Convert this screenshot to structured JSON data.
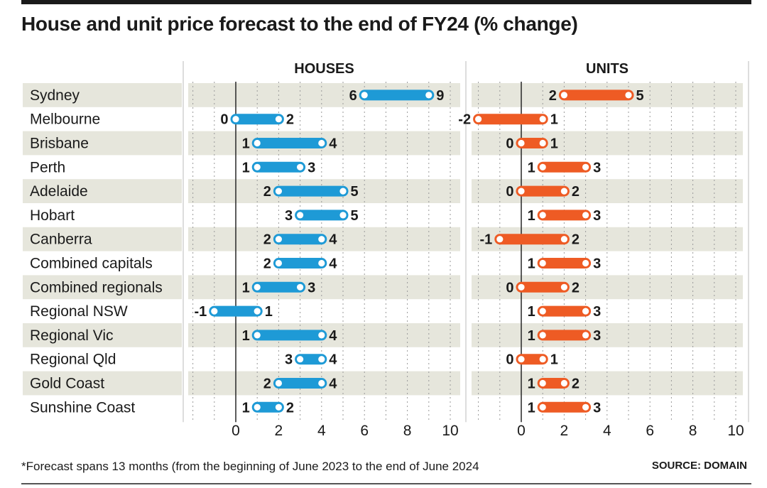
{
  "title": "House and unit price forecast to the end of FY24 (% change)",
  "footnote": "*Forecast spans 13 months (from the beginning of June 2023 to the end of June 2024",
  "source": "SOURCE: DOMAIN",
  "colors": {
    "houses": "#1e9ad6",
    "units": "#ee5b24",
    "band": "#e6e6dc",
    "axis": "#333333",
    "text": "#1a1a1a"
  },
  "chart_data": {
    "type": "range-bar",
    "title": "House and unit price forecast to the end of FY24 (% change)",
    "categories": [
      "Sydney",
      "Melbourne",
      "Brisbane",
      "Perth",
      "Adelaide",
      "Hobart",
      "Canberra",
      "Combined capitals",
      "Combined regionals",
      "Regional NSW",
      "Regional Vic",
      "Regional Qld",
      "Gold Coast",
      "Sunshine Coast"
    ],
    "panels": [
      {
        "name": "HOUSES",
        "xlim": [
          -2,
          10
        ],
        "ticks": [
          0,
          2,
          4,
          6,
          8,
          10
        ],
        "ranges": [
          [
            6,
            9
          ],
          [
            0,
            2
          ],
          [
            1,
            4
          ],
          [
            1,
            3
          ],
          [
            2,
            5
          ],
          [
            3,
            5
          ],
          [
            2,
            4
          ],
          [
            2,
            4
          ],
          [
            1,
            3
          ],
          [
            -1,
            1
          ],
          [
            1,
            4
          ],
          [
            3,
            4
          ],
          [
            2,
            4
          ],
          [
            1,
            2
          ]
        ]
      },
      {
        "name": "UNITS",
        "xlim": [
          -2,
          10
        ],
        "ticks": [
          0,
          2,
          4,
          6,
          8,
          10
        ],
        "ranges": [
          [
            2,
            5
          ],
          [
            -2,
            1
          ],
          [
            0,
            1
          ],
          [
            1,
            3
          ],
          [
            0,
            2
          ],
          [
            1,
            3
          ],
          [
            -1,
            2
          ],
          [
            1,
            3
          ],
          [
            0,
            2
          ],
          [
            1,
            3
          ],
          [
            1,
            3
          ],
          [
            0,
            1
          ],
          [
            1,
            2
          ],
          [
            1,
            3
          ]
        ]
      }
    ],
    "grid": true,
    "legend": "none"
  }
}
